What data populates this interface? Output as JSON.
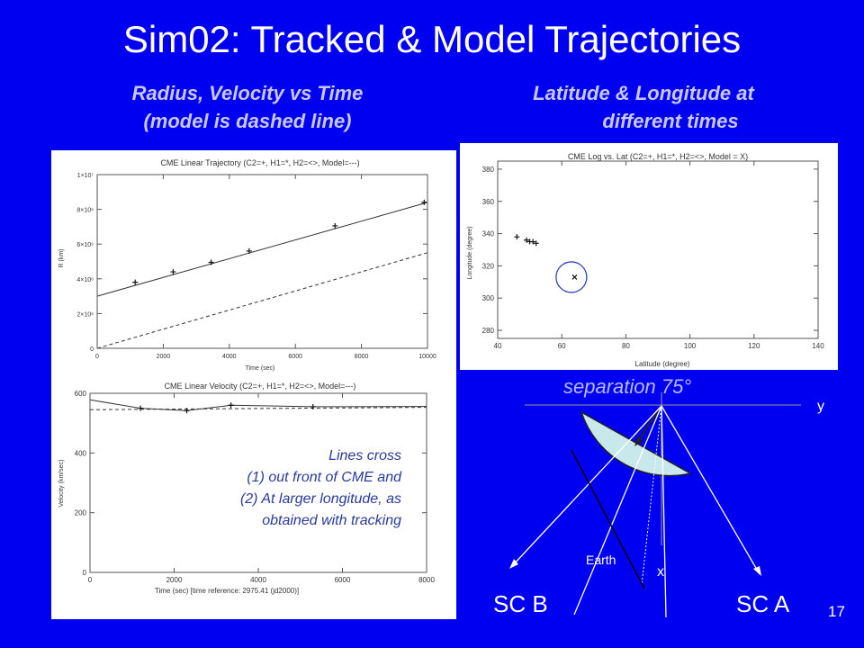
{
  "slide": {
    "title": "Sim02: Tracked & Model Trajectories",
    "subtitle_left": [
      "Radius, Velocity vs Time",
      "(model is dashed line)"
    ],
    "subtitle_right": [
      "Latitude & Longitude at",
      "different times"
    ],
    "page_number": "17"
  },
  "colors": {
    "background": "#0000f0",
    "subtitle": "#c8c8ff",
    "note_text": "#2a3a9a",
    "diagram_fill": "#c8e8ec"
  },
  "chart_data": [
    {
      "type": "line",
      "title": "CME Linear Trajectory (C2=+, H1=*, H2=<>, Model=---)",
      "xlabel": "Time (sec)",
      "ylabel": "R (km)",
      "xlim": [
        0,
        10000
      ],
      "ylim": [
        0,
        10000000
      ],
      "x_ticks": [
        0,
        2000,
        4000,
        6000,
        8000,
        10000
      ],
      "x_tick_labels": [
        "0",
        "2000",
        "4000",
        "6000",
        "8000",
        "10000"
      ],
      "y_ticks": [
        0,
        2000000,
        4000000,
        6000000,
        8000000,
        10000000
      ],
      "y_tick_labels": [
        "0",
        "2×10⁶",
        "4×10⁶",
        "6×10⁶",
        "8×10⁶",
        "1×10⁷"
      ],
      "series": [
        {
          "style": "solid",
          "x": [
            0,
            10000
          ],
          "y": [
            3000000,
            8400000
          ]
        },
        {
          "style": "dashed",
          "x": [
            0,
            10000
          ],
          "y": [
            -200000,
            5500000
          ]
        },
        {
          "style": "plus",
          "x": [
            1150,
            2300,
            3450,
            4600,
            7200,
            9900
          ],
          "y": [
            3800000,
            4400000,
            4950000,
            5600000,
            7050000,
            8400000
          ]
        }
      ]
    },
    {
      "type": "line",
      "title": "CME Linear Velocity (C2=+, H1=*, H2=<>, Model=---)",
      "xlabel": "Time (sec)  [time reference:       2975.41 (jd2000)]",
      "ylabel": "Velocity (km/sec)",
      "xlim": [
        0,
        8000
      ],
      "ylim": [
        0,
        600
      ],
      "x_ticks": [
        0,
        2000,
        4000,
        6000,
        8000
      ],
      "x_tick_labels": [
        "0",
        "2000",
        "4000",
        "6000",
        "8000"
      ],
      "y_ticks": [
        0,
        200,
        400,
        600
      ],
      "y_tick_labels": [
        "0",
        "200",
        "400",
        "600"
      ],
      "series": [
        {
          "style": "solid",
          "x": [
            0,
            1200,
            2300,
            3350,
            5300,
            8000
          ],
          "y": [
            578,
            550,
            542,
            560,
            555,
            556
          ]
        },
        {
          "style": "dashed",
          "x": [
            0,
            8000
          ],
          "y": [
            545,
            553
          ]
        },
        {
          "style": "plus",
          "x": [
            1200,
            2300,
            3350,
            5300
          ],
          "y": [
            550,
            542,
            560,
            555
          ]
        }
      ],
      "annotation": [
        "Lines cross",
        "(1) out front of CME and",
        "(2) At larger longitude, as",
        "obtained with tracking"
      ]
    },
    {
      "type": "scatter",
      "title": "CME Log vs. Lat (C2=+, H1=*, H2=<>,   Model = X)",
      "xlabel": "Latitude (degree)",
      "ylabel": "Longitude (degree)",
      "xlim": [
        40,
        140
      ],
      "ylim": [
        275,
        385
      ],
      "x_ticks": [
        40,
        60,
        80,
        100,
        120,
        140
      ],
      "x_tick_labels": [
        "40",
        "60",
        "80",
        "100",
        "120",
        "140"
      ],
      "y_ticks": [
        280,
        300,
        320,
        340,
        360,
        380
      ],
      "y_tick_labels": [
        "280",
        "300",
        "320",
        "340",
        "360",
        "380"
      ],
      "series": [
        {
          "style": "plus",
          "x": [
            46,
            49,
            50,
            51,
            52
          ],
          "y": [
            338,
            336,
            335,
            335,
            334
          ]
        },
        {
          "style": "x",
          "x": [
            64
          ],
          "y": [
            313
          ]
        }
      ],
      "circled_point": {
        "x": 63,
        "y": 313
      }
    }
  ],
  "diagram": {
    "separation_label": "separation  75°",
    "axis_y": "y",
    "axis_x": "x",
    "earth_label": "Earth",
    "sc_b": "SC B",
    "sc_a": "SC A"
  }
}
